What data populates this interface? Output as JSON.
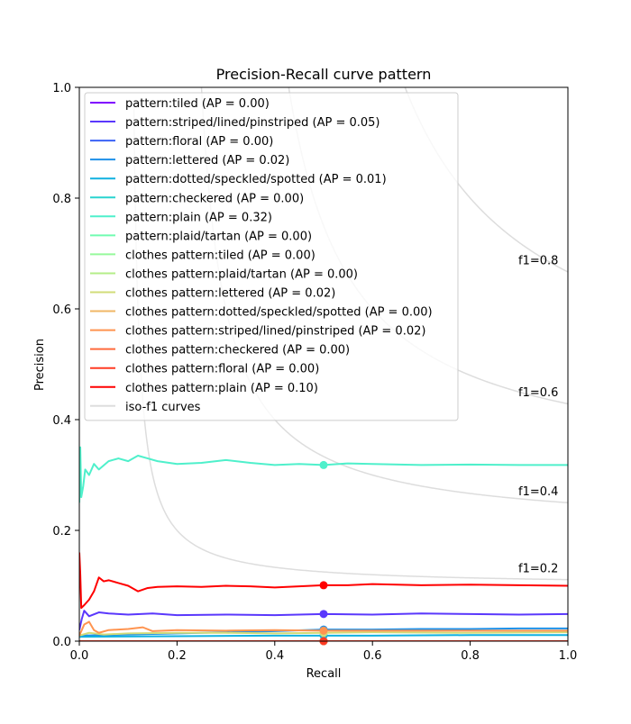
{
  "chart_data": {
    "type": "line",
    "title": "Precision-Recall curve pattern",
    "xlabel": "Recall",
    "ylabel": "Precision",
    "xlim": [
      0.0,
      1.0
    ],
    "ylim": [
      0.0,
      1.0
    ],
    "xticks": [
      0.0,
      0.2,
      0.4,
      0.6,
      0.8,
      1.0
    ],
    "yticks": [
      0.0,
      0.2,
      0.4,
      0.6,
      0.8,
      1.0
    ],
    "xtick_labels": [
      "0.0",
      "0.2",
      "0.4",
      "0.6",
      "0.8",
      "1.0"
    ],
    "ytick_labels": [
      "0.0",
      "0.2",
      "0.4",
      "0.6",
      "0.8",
      "1.0"
    ],
    "grid": false,
    "legend_position": "upper-left",
    "iso_f1": {
      "legend_label": "iso-f1 curves",
      "color": "#dddddd",
      "levels": [
        0.2,
        0.4,
        0.6,
        0.8
      ],
      "labels": [
        "f1=0.2",
        "f1=0.4",
        "f1=0.6",
        "f1=0.8"
      ]
    },
    "series": [
      {
        "name": "pattern:tiled (AP = 0.00)",
        "color": "#8000ff",
        "marker": [
          0.5,
          0.0
        ],
        "points": [
          [
            0.0,
            0.0
          ],
          [
            1.0,
            0.0
          ]
        ]
      },
      {
        "name": "pattern:striped/lined/pinstriped (AP = 0.05)",
        "color": "#5a38fc",
        "marker": [
          0.5,
          0.049
        ],
        "points": [
          [
            0.0,
            0.02
          ],
          [
            0.005,
            0.04
          ],
          [
            0.01,
            0.055
          ],
          [
            0.02,
            0.045
          ],
          [
            0.04,
            0.052
          ],
          [
            0.06,
            0.05
          ],
          [
            0.1,
            0.048
          ],
          [
            0.15,
            0.05
          ],
          [
            0.2,
            0.047
          ],
          [
            0.3,
            0.048
          ],
          [
            0.4,
            0.047
          ],
          [
            0.5,
            0.049
          ],
          [
            0.6,
            0.048
          ],
          [
            0.7,
            0.05
          ],
          [
            0.8,
            0.049
          ],
          [
            0.9,
            0.048
          ],
          [
            1.0,
            0.049
          ]
        ]
      },
      {
        "name": "pattern:floral (AP = 0.00)",
        "color": "#3a62f6",
        "marker": [
          0.5,
          0.0
        ],
        "points": [
          [
            0.0,
            0.0
          ],
          [
            1.0,
            0.0
          ]
        ]
      },
      {
        "name": "pattern:lettered (AP = 0.02)",
        "color": "#1e90e8",
        "marker": [
          0.5,
          0.021
        ],
        "points": [
          [
            0.0,
            0.01
          ],
          [
            0.1,
            0.012
          ],
          [
            0.2,
            0.014
          ],
          [
            0.3,
            0.016
          ],
          [
            0.4,
            0.018
          ],
          [
            0.5,
            0.021
          ],
          [
            0.6,
            0.021
          ],
          [
            0.7,
            0.022
          ],
          [
            0.8,
            0.022
          ],
          [
            0.9,
            0.023
          ],
          [
            1.0,
            0.023
          ]
        ]
      },
      {
        "name": "pattern:dotted/speckled/spotted (AP = 0.01)",
        "color": "#10b1e0",
        "marker": [
          0.5,
          0.01
        ],
        "points": [
          [
            0.0,
            0.008
          ],
          [
            0.2,
            0.009
          ],
          [
            0.4,
            0.01
          ],
          [
            0.6,
            0.01
          ],
          [
            0.8,
            0.011
          ],
          [
            1.0,
            0.011
          ]
        ]
      },
      {
        "name": "pattern:checkered (AP = 0.00)",
        "color": "#2ad4cf",
        "marker": [
          0.5,
          0.0
        ],
        "points": [
          [
            0.0,
            0.0
          ],
          [
            1.0,
            0.0
          ]
        ]
      },
      {
        "name": "pattern:plain (AP = 0.32)",
        "color": "#4ff0cb",
        "marker": [
          0.5,
          0.318
        ],
        "points": [
          [
            0.0,
            0.25
          ],
          [
            0.002,
            0.35
          ],
          [
            0.004,
            0.26
          ],
          [
            0.008,
            0.28
          ],
          [
            0.012,
            0.31
          ],
          [
            0.02,
            0.3
          ],
          [
            0.03,
            0.32
          ],
          [
            0.04,
            0.31
          ],
          [
            0.06,
            0.325
          ],
          [
            0.08,
            0.33
          ],
          [
            0.1,
            0.325
          ],
          [
            0.12,
            0.335
          ],
          [
            0.14,
            0.33
          ],
          [
            0.16,
            0.325
          ],
          [
            0.2,
            0.32
          ],
          [
            0.25,
            0.322
          ],
          [
            0.3,
            0.327
          ],
          [
            0.35,
            0.322
          ],
          [
            0.4,
            0.318
          ],
          [
            0.45,
            0.32
          ],
          [
            0.5,
            0.318
          ],
          [
            0.55,
            0.321
          ],
          [
            0.6,
            0.32
          ],
          [
            0.7,
            0.318
          ],
          [
            0.8,
            0.319
          ],
          [
            0.9,
            0.318
          ],
          [
            1.0,
            0.318
          ]
        ]
      },
      {
        "name": "pattern:plaid/tartan (AP = 0.00)",
        "color": "#70fcb0",
        "marker": [
          0.5,
          0.0
        ],
        "points": [
          [
            0.0,
            0.0
          ],
          [
            1.0,
            0.0
          ]
        ]
      },
      {
        "name": "clothes pattern:tiled (AP = 0.00)",
        "color": "#96f99b",
        "marker": [
          0.5,
          0.0
        ],
        "points": [
          [
            0.0,
            0.0
          ],
          [
            1.0,
            0.0
          ]
        ]
      },
      {
        "name": "clothes pattern:plaid/tartan (AP = 0.00)",
        "color": "#b4ee88",
        "marker": [
          0.5,
          0.0
        ],
        "points": [
          [
            0.0,
            0.0
          ],
          [
            1.0,
            0.0
          ]
        ]
      },
      {
        "name": "clothes pattern:lettered (AP = 0.02)",
        "color": "#d2dc78",
        "marker": [
          0.5,
          0.015
        ],
        "points": [
          [
            0.0,
            0.01
          ],
          [
            0.02,
            0.015
          ],
          [
            0.05,
            0.012
          ],
          [
            0.1,
            0.014
          ],
          [
            0.2,
            0.015
          ],
          [
            0.3,
            0.015
          ],
          [
            0.4,
            0.014
          ],
          [
            0.5,
            0.015
          ],
          [
            0.6,
            0.016
          ],
          [
            0.8,
            0.015
          ],
          [
            1.0,
            0.016
          ]
        ]
      },
      {
        "name": "clothes pattern:dotted/speckled/spotted (AP = 0.00)",
        "color": "#f0b765",
        "marker": [
          0.5,
          0.0
        ],
        "points": [
          [
            0.0,
            0.0
          ],
          [
            1.0,
            0.0
          ]
        ]
      },
      {
        "name": "clothes pattern:striped/lined/pinstriped (AP = 0.02)",
        "color": "#ff9450",
        "marker": [
          0.5,
          0.019
        ],
        "points": [
          [
            0.0,
            0.01
          ],
          [
            0.01,
            0.03
          ],
          [
            0.02,
            0.035
          ],
          [
            0.03,
            0.02
          ],
          [
            0.04,
            0.015
          ],
          [
            0.06,
            0.02
          ],
          [
            0.1,
            0.022
          ],
          [
            0.13,
            0.025
          ],
          [
            0.15,
            0.018
          ],
          [
            0.2,
            0.02
          ],
          [
            0.3,
            0.019
          ],
          [
            0.4,
            0.02
          ],
          [
            0.5,
            0.019
          ],
          [
            0.6,
            0.019
          ],
          [
            0.8,
            0.019
          ],
          [
            1.0,
            0.019
          ]
        ]
      },
      {
        "name": "clothes pattern:checkered (AP = 0.00)",
        "color": "#ff6a3c",
        "marker": [
          0.5,
          0.0
        ],
        "points": [
          [
            0.0,
            0.0
          ],
          [
            1.0,
            0.0
          ]
        ]
      },
      {
        "name": "clothes pattern:floral (AP = 0.00)",
        "color": "#ff3c24",
        "marker": [
          0.5,
          0.0
        ],
        "points": [
          [
            0.0,
            0.0
          ],
          [
            1.0,
            0.0
          ]
        ]
      },
      {
        "name": "clothes pattern:plain (AP = 0.10)",
        "color": "#ff0000",
        "marker": [
          0.5,
          0.101
        ],
        "points": [
          [
            0.0,
            0.16
          ],
          [
            0.002,
            0.12
          ],
          [
            0.004,
            0.06
          ],
          [
            0.01,
            0.065
          ],
          [
            0.02,
            0.075
          ],
          [
            0.03,
            0.09
          ],
          [
            0.04,
            0.115
          ],
          [
            0.05,
            0.108
          ],
          [
            0.06,
            0.11
          ],
          [
            0.08,
            0.105
          ],
          [
            0.1,
            0.1
          ],
          [
            0.12,
            0.09
          ],
          [
            0.14,
            0.096
          ],
          [
            0.16,
            0.098
          ],
          [
            0.2,
            0.099
          ],
          [
            0.25,
            0.098
          ],
          [
            0.3,
            0.1
          ],
          [
            0.35,
            0.099
          ],
          [
            0.4,
            0.097
          ],
          [
            0.45,
            0.099
          ],
          [
            0.5,
            0.101
          ],
          [
            0.55,
            0.101
          ],
          [
            0.6,
            0.103
          ],
          [
            0.65,
            0.102
          ],
          [
            0.7,
            0.101
          ],
          [
            0.8,
            0.102
          ],
          [
            0.9,
            0.101
          ],
          [
            1.0,
            0.1
          ]
        ]
      }
    ]
  }
}
